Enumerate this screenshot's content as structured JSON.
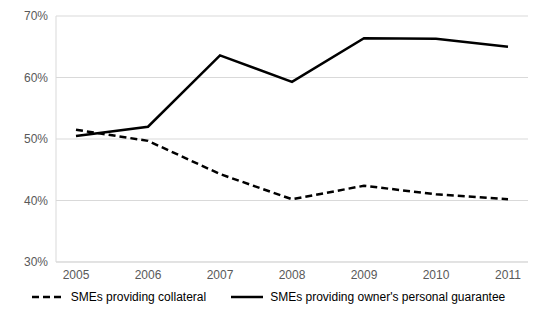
{
  "chart_data": {
    "type": "line",
    "categories": [
      "2005",
      "2006",
      "2007",
      "2008",
      "2009",
      "2010",
      "2011"
    ],
    "series": [
      {
        "name": "SMEs providing collateral",
        "color": "#000000",
        "line_style": "dashed",
        "values": [
          51.5,
          49.7,
          44.3,
          40.2,
          42.4,
          41.0,
          40.2
        ]
      },
      {
        "name": "SMEs providing owner's personal guarantee",
        "color": "#000000",
        "line_style": "solid",
        "values": [
          50.5,
          52.0,
          63.6,
          59.3,
          66.4,
          66.3,
          65.0
        ]
      }
    ],
    "ylim": [
      30,
      70
    ],
    "yticks": [
      {
        "value": 30,
        "label": "30%"
      },
      {
        "value": 40,
        "label": "40%"
      },
      {
        "value": 50,
        "label": "50%"
      },
      {
        "value": 60,
        "label": "60%"
      },
      {
        "value": 70,
        "label": "70%"
      }
    ],
    "grid": true,
    "legend": "bottom"
  }
}
